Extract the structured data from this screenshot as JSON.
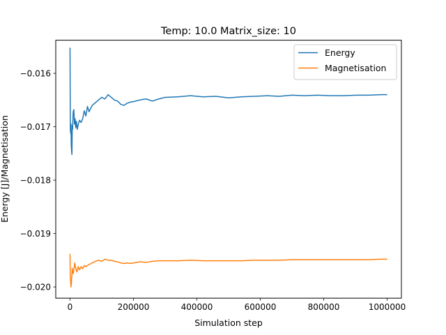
{
  "chart_data": {
    "type": "line",
    "title": "Temp: 10.0 Matrix_size: 10",
    "xlabel": "Simulation step",
    "ylabel": "Energy [J]/Magnetisation",
    "xlim": [
      -45000,
      1045000
    ],
    "ylim": [
      -0.02021,
      -0.01538
    ],
    "xticks": [
      0,
      200000,
      400000,
      600000,
      800000,
      1000000
    ],
    "xtick_labels": [
      "0",
      "200000",
      "400000",
      "600000",
      "800000",
      "1000000"
    ],
    "yticks": [
      -0.02,
      -0.019,
      -0.018,
      -0.017,
      -0.016
    ],
    "ytick_labels": [
      "−0.020",
      "−0.019",
      "−0.018",
      "−0.017",
      "−0.016"
    ],
    "grid": false,
    "legend": "top-right",
    "series": [
      {
        "name": "Energy",
        "color": "#1f77b4",
        "x": [
          0,
          1000,
          2000,
          3000,
          4000,
          5000,
          6000,
          7000,
          8000,
          10000,
          12000,
          14000,
          16000,
          18000,
          20000,
          23000,
          26000,
          30000,
          35000,
          40000,
          45000,
          50000,
          55000,
          60000,
          70000,
          80000,
          90000,
          100000,
          110000,
          120000,
          130000,
          140000,
          150000,
          160000,
          170000,
          180000,
          190000,
          200000,
          220000,
          240000,
          260000,
          280000,
          300000,
          340000,
          380000,
          420000,
          460000,
          500000,
          540000,
          580000,
          620000,
          660000,
          700000,
          740000,
          780000,
          820000,
          860000,
          900000,
          940000,
          980000,
          1000000
        ],
        "y": [
          -0.01552,
          -0.01705,
          -0.01712,
          -0.01695,
          -0.01735,
          -0.01745,
          -0.01752,
          -0.01698,
          -0.01705,
          -0.01672,
          -0.01668,
          -0.01695,
          -0.01685,
          -0.01702,
          -0.0169,
          -0.01705,
          -0.01695,
          -0.01688,
          -0.01692,
          -0.01685,
          -0.0167,
          -0.0168,
          -0.01662,
          -0.01672,
          -0.0166,
          -0.01655,
          -0.0165,
          -0.01645,
          -0.01648,
          -0.0164,
          -0.01645,
          -0.0165,
          -0.01652,
          -0.01658,
          -0.0166,
          -0.01656,
          -0.01654,
          -0.01653,
          -0.0165,
          -0.01648,
          -0.01652,
          -0.01648,
          -0.01645,
          -0.01644,
          -0.01642,
          -0.01644,
          -0.01643,
          -0.01646,
          -0.01644,
          -0.01643,
          -0.01642,
          -0.01643,
          -0.01641,
          -0.01642,
          -0.01641,
          -0.01642,
          -0.01642,
          -0.01641,
          -0.01641,
          -0.0164,
          -0.0164
        ]
      },
      {
        "name": "Magnetisation",
        "color": "#ff7f0e",
        "x": [
          0,
          1000,
          2000,
          3000,
          4000,
          5000,
          6000,
          7000,
          8000,
          10000,
          12000,
          15000,
          18000,
          22000,
          26000,
          30000,
          35000,
          40000,
          45000,
          50000,
          60000,
          70000,
          80000,
          90000,
          100000,
          110000,
          120000,
          130000,
          140000,
          150000,
          160000,
          170000,
          180000,
          190000,
          200000,
          220000,
          240000,
          260000,
          280000,
          300000,
          340000,
          380000,
          420000,
          460000,
          500000,
          540000,
          580000,
          620000,
          660000,
          700000,
          740000,
          780000,
          820000,
          860000,
          900000,
          940000,
          980000,
          1000000
        ],
        "y": [
          -0.01938,
          -0.01985,
          -0.0199,
          -0.02,
          -0.01995,
          -0.01985,
          -0.01978,
          -0.01965,
          -0.0197,
          -0.01975,
          -0.01968,
          -0.01955,
          -0.01965,
          -0.01972,
          -0.01962,
          -0.01968,
          -0.01962,
          -0.01966,
          -0.0196,
          -0.01962,
          -0.01958,
          -0.01955,
          -0.01952,
          -0.0195,
          -0.01952,
          -0.01948,
          -0.0195,
          -0.0195,
          -0.01952,
          -0.01953,
          -0.01955,
          -0.01956,
          -0.01955,
          -0.01956,
          -0.01955,
          -0.01953,
          -0.01954,
          -0.01952,
          -0.01951,
          -0.01951,
          -0.01951,
          -0.0195,
          -0.01951,
          -0.01951,
          -0.01951,
          -0.01951,
          -0.0195,
          -0.0195,
          -0.0195,
          -0.01949,
          -0.01949,
          -0.01949,
          -0.01949,
          -0.01949,
          -0.01949,
          -0.01949,
          -0.01948,
          -0.01948
        ]
      }
    ]
  }
}
